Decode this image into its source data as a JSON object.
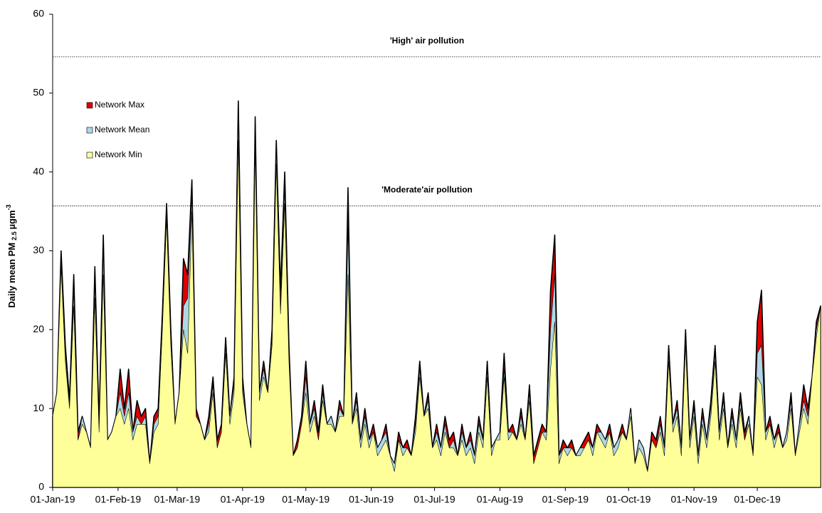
{
  "chart_data": {
    "type": "area",
    "x": [
      "2019-01-01",
      "2019-01-03",
      "2019-01-05",
      "2019-01-07",
      "2019-01-09",
      "2019-01-11",
      "2019-01-13",
      "2019-01-15",
      "2019-01-17",
      "2019-01-19",
      "2019-01-21",
      "2019-01-23",
      "2019-01-25",
      "2019-01-27",
      "2019-01-29",
      "2019-01-31",
      "2019-02-02",
      "2019-02-04",
      "2019-02-06",
      "2019-02-08",
      "2019-02-10",
      "2019-02-12",
      "2019-02-14",
      "2019-02-16",
      "2019-02-18",
      "2019-02-20",
      "2019-02-22",
      "2019-02-24",
      "2019-02-26",
      "2019-02-28",
      "2019-03-02",
      "2019-03-04",
      "2019-03-06",
      "2019-03-08",
      "2019-03-10",
      "2019-03-12",
      "2019-03-14",
      "2019-03-16",
      "2019-03-18",
      "2019-03-20",
      "2019-03-22",
      "2019-03-24",
      "2019-03-26",
      "2019-03-28",
      "2019-03-30",
      "2019-04-01",
      "2019-04-03",
      "2019-04-05",
      "2019-04-07",
      "2019-04-09",
      "2019-04-11",
      "2019-04-13",
      "2019-04-15",
      "2019-04-17",
      "2019-04-19",
      "2019-04-21",
      "2019-04-23",
      "2019-04-25",
      "2019-04-27",
      "2019-04-29",
      "2019-05-01",
      "2019-05-03",
      "2019-05-05",
      "2019-05-07",
      "2019-05-09",
      "2019-05-11",
      "2019-05-13",
      "2019-05-15",
      "2019-05-17",
      "2019-05-19",
      "2019-05-21",
      "2019-05-23",
      "2019-05-25",
      "2019-05-27",
      "2019-05-29",
      "2019-05-31",
      "2019-06-02",
      "2019-06-04",
      "2019-06-06",
      "2019-06-08",
      "2019-06-10",
      "2019-06-12",
      "2019-06-14",
      "2019-06-16",
      "2019-06-18",
      "2019-06-20",
      "2019-06-22",
      "2019-06-24",
      "2019-06-26",
      "2019-06-28",
      "2019-06-30",
      "2019-07-02",
      "2019-07-04",
      "2019-07-06",
      "2019-07-08",
      "2019-07-10",
      "2019-07-12",
      "2019-07-14",
      "2019-07-16",
      "2019-07-18",
      "2019-07-20",
      "2019-07-22",
      "2019-07-24",
      "2019-07-26",
      "2019-07-28",
      "2019-07-30",
      "2019-08-01",
      "2019-08-03",
      "2019-08-05",
      "2019-08-07",
      "2019-08-09",
      "2019-08-11",
      "2019-08-13",
      "2019-08-15",
      "2019-08-17",
      "2019-08-19",
      "2019-08-21",
      "2019-08-23",
      "2019-08-25",
      "2019-08-27",
      "2019-08-29",
      "2019-08-31",
      "2019-09-02",
      "2019-09-04",
      "2019-09-06",
      "2019-09-08",
      "2019-09-10",
      "2019-09-12",
      "2019-09-14",
      "2019-09-16",
      "2019-09-18",
      "2019-09-20",
      "2019-09-22",
      "2019-09-24",
      "2019-09-26",
      "2019-09-28",
      "2019-09-30",
      "2019-10-02",
      "2019-10-04",
      "2019-10-06",
      "2019-10-08",
      "2019-10-10",
      "2019-10-12",
      "2019-10-14",
      "2019-10-16",
      "2019-10-18",
      "2019-10-20",
      "2019-10-22",
      "2019-10-24",
      "2019-10-26",
      "2019-10-28",
      "2019-10-30",
      "2019-11-01",
      "2019-11-03",
      "2019-11-05",
      "2019-11-07",
      "2019-11-09",
      "2019-11-11",
      "2019-11-13",
      "2019-11-15",
      "2019-11-17",
      "2019-11-19",
      "2019-11-21",
      "2019-11-23",
      "2019-11-25",
      "2019-11-27",
      "2019-11-29",
      "2019-12-01",
      "2019-12-03",
      "2019-12-05",
      "2019-12-07",
      "2019-12-09",
      "2019-12-11",
      "2019-12-13",
      "2019-12-15",
      "2019-12-17",
      "2019-12-19",
      "2019-12-21",
      "2019-12-23",
      "2019-12-25",
      "2019-12-27",
      "2019-12-29",
      "2019-12-31"
    ],
    "series": [
      {
        "name": "Network Max",
        "color": "#e00000",
        "values": [
          9,
          12,
          30,
          18,
          11,
          27,
          7,
          9,
          7,
          5,
          28,
          8,
          32,
          6,
          7,
          9,
          15,
          10,
          15,
          7,
          11,
          9,
          10,
          3,
          9,
          10,
          22,
          36,
          20,
          8,
          12,
          29,
          27,
          39,
          10,
          8,
          6,
          9,
          14,
          6,
          8,
          19,
          9,
          14,
          49,
          14,
          8,
          5,
          47,
          12,
          16,
          12,
          20,
          44,
          25,
          40,
          18,
          4,
          6,
          9,
          16,
          8,
          11,
          7,
          13,
          8,
          9,
          7,
          11,
          9,
          38,
          8,
          12,
          6,
          10,
          6,
          8,
          5,
          6,
          8,
          4,
          3,
          7,
          5,
          6,
          4,
          9,
          16,
          9,
          12,
          5,
          8,
          5,
          9,
          6,
          7,
          4,
          8,
          5,
          7,
          4,
          9,
          6,
          16,
          5,
          6,
          7,
          17,
          7,
          8,
          6,
          10,
          6,
          13,
          4,
          6,
          8,
          7,
          25,
          32,
          4,
          6,
          5,
          6,
          4,
          5,
          6,
          7,
          5,
          8,
          7,
          6,
          8,
          5,
          6,
          8,
          6,
          10,
          3,
          6,
          5,
          2,
          7,
          6,
          9,
          5,
          18,
          8,
          11,
          5,
          20,
          6,
          11,
          4,
          10,
          6,
          11,
          18,
          7,
          12,
          5,
          10,
          6,
          12,
          7,
          9,
          4,
          21,
          25,
          7,
          9,
          6,
          8,
          5,
          7,
          12,
          4,
          8,
          13,
          10,
          14,
          21,
          23
        ]
      },
      {
        "name": "Network Mean",
        "color": "#add8e6",
        "values": [
          9,
          12,
          29,
          17,
          10,
          25,
          6,
          9,
          7,
          5,
          26,
          7,
          30,
          6,
          7,
          9,
          12,
          9,
          12,
          7,
          9,
          8,
          9,
          3,
          8,
          9,
          21,
          35,
          19,
          8,
          12,
          23,
          24,
          37,
          9,
          8,
          6,
          8,
          13,
          5,
          7,
          18,
          9,
          13,
          47,
          13,
          8,
          5,
          45,
          12,
          15,
          12,
          19,
          43,
          23,
          38,
          17,
          4,
          5,
          8,
          14,
          8,
          10,
          6,
          12,
          8,
          9,
          7,
          10,
          9,
          33,
          8,
          11,
          6,
          9,
          6,
          7,
          5,
          6,
          7,
          4,
          3,
          6,
          5,
          5,
          4,
          8,
          15,
          9,
          11,
          5,
          7,
          5,
          8,
          5,
          6,
          4,
          7,
          5,
          6,
          4,
          8,
          6,
          15,
          5,
          6,
          7,
          15,
          7,
          7,
          6,
          9,
          6,
          12,
          3,
          5,
          7,
          7,
          20,
          27,
          4,
          5,
          5,
          5,
          4,
          5,
          5,
          6,
          5,
          7,
          7,
          6,
          7,
          5,
          6,
          7,
          6,
          10,
          3,
          6,
          5,
          2,
          6,
          5,
          8,
          5,
          17,
          8,
          10,
          5,
          19,
          6,
          10,
          4,
          9,
          6,
          10,
          17,
          7,
          11,
          5,
          9,
          6,
          11,
          6,
          9,
          4,
          17,
          18,
          7,
          8,
          6,
          7,
          5,
          7,
          11,
          4,
          8,
          11,
          9,
          14,
          20,
          23
        ]
      },
      {
        "name": "Network Min",
        "color": "#ffff99",
        "values": [
          9,
          12,
          28,
          16,
          10,
          23,
          6,
          8,
          7,
          5,
          24,
          7,
          27,
          6,
          7,
          9,
          10,
          8,
          10,
          6,
          8,
          8,
          8,
          3,
          7,
          8,
          20,
          34,
          18,
          8,
          12,
          20,
          17,
          35,
          9,
          8,
          6,
          7,
          12,
          5,
          7,
          17,
          8,
          12,
          44,
          12,
          8,
          5,
          43,
          11,
          14,
          12,
          18,
          41,
          22,
          36,
          16,
          4,
          5,
          8,
          12,
          7,
          9,
          6,
          11,
          8,
          8,
          7,
          9,
          9,
          27,
          8,
          10,
          5,
          8,
          5,
          7,
          4,
          5,
          6,
          4,
          2,
          6,
          4,
          5,
          4,
          7,
          14,
          9,
          10,
          5,
          6,
          4,
          7,
          5,
          5,
          4,
          6,
          4,
          5,
          3,
          7,
          5,
          14,
          4,
          6,
          6,
          14,
          6,
          7,
          6,
          8,
          6,
          11,
          3,
          5,
          7,
          6,
          15,
          21,
          3,
          5,
          4,
          5,
          4,
          4,
          5,
          6,
          4,
          7,
          6,
          5,
          7,
          4,
          5,
          7,
          6,
          9,
          3,
          5,
          4,
          2,
          6,
          5,
          7,
          4,
          16,
          7,
          9,
          4,
          18,
          5,
          9,
          3,
          8,
          5,
          9,
          16,
          6,
          10,
          5,
          8,
          5,
          10,
          6,
          8,
          4,
          14,
          13,
          6,
          8,
          5,
          7,
          5,
          6,
          10,
          4,
          7,
          10,
          8,
          14,
          19,
          23
        ]
      }
    ],
    "xlim": [
      "2019-01-01",
      "2019-12-31"
    ],
    "xticks": [
      {
        "value": "2019-01-01",
        "label": "01-Jan-19"
      },
      {
        "value": "2019-02-01",
        "label": "01-Feb-19"
      },
      {
        "value": "2019-03-01",
        "label": "01-Mar-19"
      },
      {
        "value": "2019-04-01",
        "label": "01-Apr-19"
      },
      {
        "value": "2019-05-01",
        "label": "01-May-19"
      },
      {
        "value": "2019-06-01",
        "label": "01-Jun-19"
      },
      {
        "value": "2019-07-01",
        "label": "01-Jul-19"
      },
      {
        "value": "2019-08-01",
        "label": "01-Aug-19"
      },
      {
        "value": "2019-09-01",
        "label": "01-Sep-19"
      },
      {
        "value": "2019-10-01",
        "label": "01-Oct-19"
      },
      {
        "value": "2019-11-01",
        "label": "01-Nov-19"
      },
      {
        "value": "2019-12-01",
        "label": "01-Dec-19"
      }
    ],
    "ylim": [
      0,
      60
    ],
    "yticks": [
      0,
      10,
      20,
      30,
      40,
      50,
      60
    ],
    "y_label": {
      "main": "Daily  mean PM",
      "sub": "2.5",
      "unit": "µgm",
      "sup": "-3"
    },
    "reference_lines": [
      {
        "text": "'High' air pollution",
        "value": 54.6
      },
      {
        "text": "'Moderate'air pollution",
        "value": 35.7
      }
    ],
    "grid": false,
    "legend": "upper-left"
  }
}
